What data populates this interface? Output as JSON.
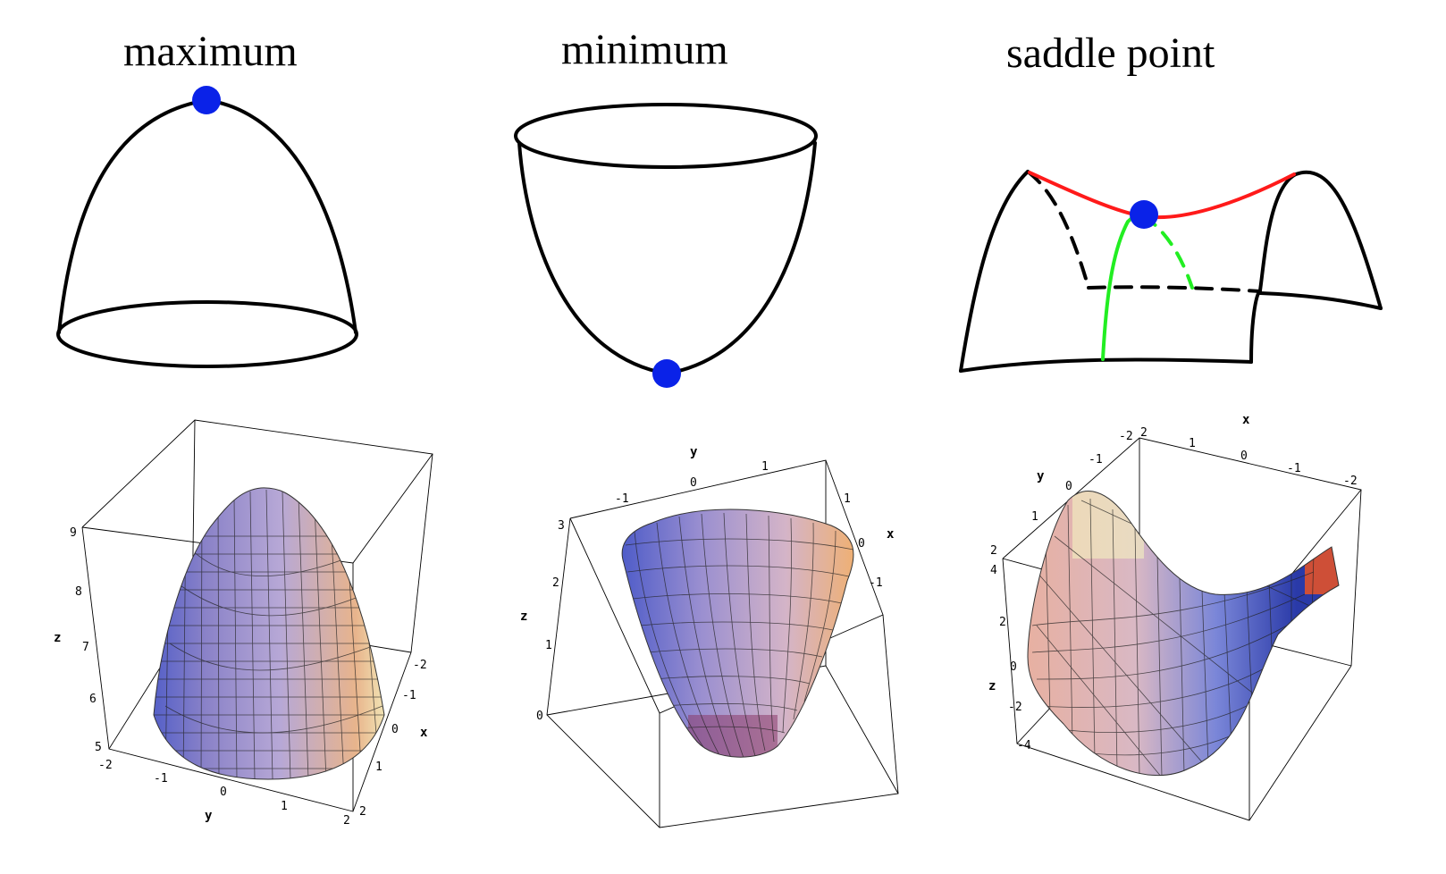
{
  "titles": {
    "maximum": "maximum",
    "minimum": "minimum",
    "saddle": "saddle point"
  },
  "colors": {
    "critical_point": "#0a22e8",
    "red_curve": "#ff1a1a",
    "green_curve": "#22ee22",
    "outline": "#000000",
    "surface_cool": "#4a59c8",
    "surface_mid": "#b7a8d6",
    "surface_warm": "#e8b48c",
    "surface_hot": "#e0522a",
    "surface_highlight": "#f4f2c0"
  },
  "plots": {
    "maximum": {
      "axes": {
        "x": "x",
        "y": "y",
        "z": "z"
      },
      "z_ticks": [
        "9",
        "8",
        "7",
        "6",
        "5"
      ],
      "y_ticks": [
        "-2",
        "-1",
        "0",
        "1",
        "2"
      ],
      "x_ticks": [
        "-2",
        "-1",
        "0",
        "1",
        "2"
      ]
    },
    "minimum": {
      "axes": {
        "x": "x",
        "y": "y",
        "z": "z"
      },
      "z_ticks": [
        "3",
        "2",
        "1",
        "0"
      ],
      "y_ticks": [
        "-1",
        "0",
        "1"
      ],
      "x_ticks": [
        "1",
        "0",
        "-1"
      ]
    },
    "saddle": {
      "axes": {
        "x": "x",
        "y": "y",
        "z": "z"
      },
      "x_ticks": [
        "2",
        "1",
        "0",
        "-1",
        "-2"
      ],
      "y_ticks": [
        "-2",
        "-1",
        "0",
        "1",
        "2"
      ],
      "z_ticks": [
        "4",
        "2",
        "0",
        "-2",
        "-4"
      ]
    }
  }
}
